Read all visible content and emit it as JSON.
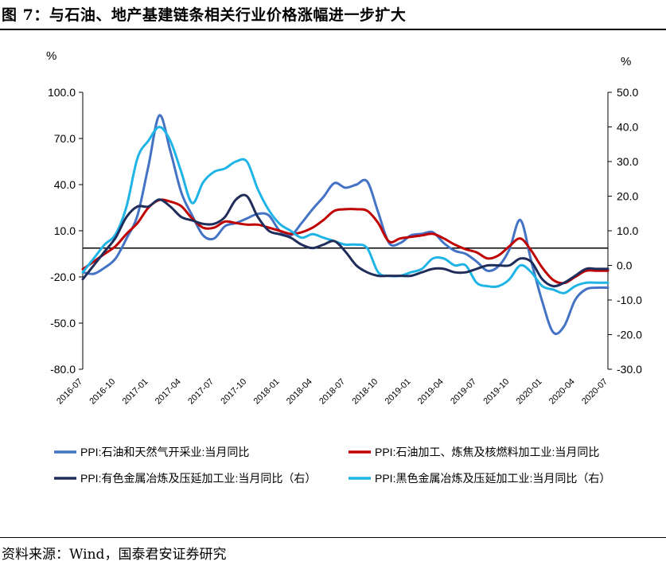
{
  "title": "图 7：与石油、地产基建链条相关行业价格涨幅进一步扩大",
  "source": "资料来源：Wind，国泰君安证券研究",
  "colors": {
    "series1": "#4472C4",
    "series2": "#C00000",
    "series3": "#1F2D5A",
    "series4": "#1FB4E6"
  },
  "chart_data": {
    "type": "line",
    "title": "",
    "left_axis": {
      "unit": "%",
      "range": [
        -80,
        100
      ],
      "ticks": [
        "100.0",
        "70.0",
        "40.0",
        "10.0",
        "-20.0",
        "-50.0",
        "-80.0"
      ]
    },
    "right_axis": {
      "unit": "%",
      "range": [
        -30,
        50
      ],
      "ticks": [
        "50.0",
        "40.0",
        "30.0",
        "20.0",
        "10.0",
        "0.0",
        "-10.0",
        "-20.0",
        "-30.0"
      ]
    },
    "x_tick_labels": [
      "2016-07",
      "2016-10",
      "2017-01",
      "2017-04",
      "2017-07",
      "2017-10",
      "2018-01",
      "2018-04",
      "2018-07",
      "2018-10",
      "2019-01",
      "2019-04",
      "2019-07",
      "2019-10",
      "2020-01",
      "2020-04",
      "2020-07"
    ],
    "x_start": "2016-07",
    "x_end": "2020-07",
    "months_count": 49,
    "series": [
      {
        "name": "PPI:石油和天然气开采业:当月同比",
        "axis": "left",
        "values": [
          -17,
          -18,
          -14,
          -8,
          5,
          20,
          52,
          85,
          62,
          35,
          20,
          7,
          5,
          13,
          15,
          18,
          21,
          20,
          10,
          7,
          15,
          24,
          32,
          41,
          38,
          40,
          42,
          22,
          2,
          2,
          7,
          8,
          9,
          2,
          -3,
          -5,
          -10,
          -16,
          -13,
          -2,
          17,
          -10,
          -36,
          -56,
          -52,
          -35,
          -28,
          -27,
          -27
        ]
      },
      {
        "name": "PPI:石油加工、炼焦及核燃料加工业:当月同比",
        "axis": "left",
        "values": [
          -15,
          -10,
          -5,
          0,
          8,
          15,
          25,
          30,
          29,
          26,
          18,
          12,
          12,
          16,
          15,
          14,
          14,
          12,
          10,
          8,
          9,
          12,
          17,
          23,
          24,
          24,
          23,
          15,
          3,
          5,
          6,
          7,
          8,
          5,
          1,
          -2,
          -4,
          -8,
          -6,
          0,
          5,
          -3,
          -14,
          -22,
          -24,
          -20,
          -16,
          -16,
          -16
        ]
      },
      {
        "name": "PPI:有色金属冶炼及压延加工业:当月同比（右）",
        "axis": "right",
        "values": [
          -4,
          0,
          4,
          8,
          14,
          17,
          17,
          19,
          17,
          14,
          13,
          12,
          12,
          14,
          19,
          20,
          14,
          10,
          9,
          8,
          6,
          5,
          6,
          7,
          4,
          0,
          -2,
          -3,
          -3,
          -3,
          -3,
          -2,
          -1,
          -1,
          -2,
          -2,
          -1,
          0,
          0,
          0,
          2,
          1,
          -4,
          -6,
          -5,
          -3,
          -1,
          -1,
          -1
        ]
      },
      {
        "name": "PPI:黑色金属冶炼及压延加工业:当月同比（右）",
        "axis": "right",
        "values": [
          -2,
          2,
          6,
          9,
          17,
          31,
          36,
          40,
          36,
          27,
          18,
          24,
          27,
          28,
          30,
          30,
          22,
          16,
          12,
          10,
          8,
          9,
          8,
          7,
          6,
          6,
          5,
          -2,
          -3,
          -3,
          -2,
          -1,
          2,
          2,
          0,
          0,
          -5,
          -6,
          -6,
          -4,
          0,
          -2,
          -6,
          -7,
          -8,
          -6,
          -5,
          -5,
          -5
        ]
      }
    ]
  }
}
